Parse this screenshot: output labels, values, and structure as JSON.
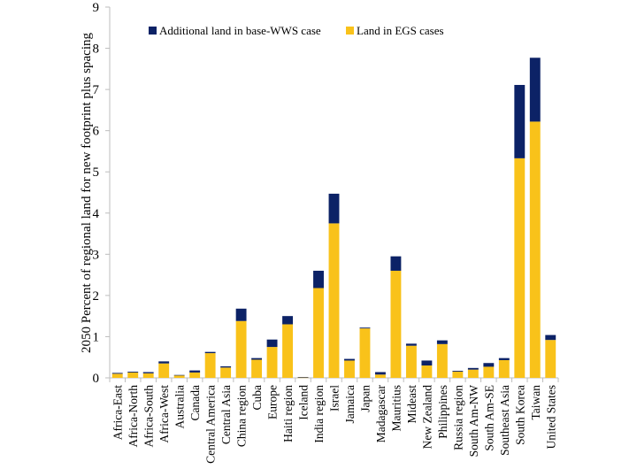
{
  "chart_data": {
    "type": "bar",
    "stacked": true,
    "title": "",
    "xlabel": "",
    "ylabel": "2050 Percent of regional land for new footprint plus spacing",
    "ylim": [
      0,
      9
    ],
    "yticks": [
      0,
      1,
      2,
      3,
      4,
      5,
      6,
      7,
      8,
      9
    ],
    "grid": false,
    "legend_position": "top",
    "categories": [
      "Africa-East",
      "Africa-North",
      "Africa-South",
      "Africa-West",
      "Australia",
      "Canada",
      "Central America",
      "Central Asia",
      "China region",
      "Cuba",
      "Europe",
      "Haiti region",
      "Iceland",
      "India region",
      "Israel",
      "Jamaica",
      "Japan",
      "Madagascar",
      "Mauritius",
      "Mideast",
      "New Zealand",
      "Philippines",
      "Russia region",
      "South Am-NW",
      "South Am-SE",
      "Southeast Asia",
      "South Korea",
      "Taiwan",
      "United States"
    ],
    "series": [
      {
        "name": "Land in EGS cases",
        "color": "#f9c21a",
        "values": [
          0.1,
          0.13,
          0.11,
          0.35,
          0.06,
          0.13,
          0.6,
          0.25,
          1.38,
          0.44,
          0.75,
          1.3,
          0.01,
          2.18,
          3.75,
          0.42,
          1.2,
          0.08,
          2.6,
          0.78,
          0.3,
          0.82,
          0.15,
          0.2,
          0.27,
          0.43,
          5.33,
          6.22,
          0.92
        ]
      },
      {
        "name": "Additional land in base-WWS case",
        "color": "#0c2266",
        "values": [
          0.02,
          0.02,
          0.03,
          0.05,
          0.01,
          0.05,
          0.03,
          0.03,
          0.3,
          0.04,
          0.18,
          0.2,
          0.01,
          0.42,
          0.72,
          0.04,
          0.02,
          0.06,
          0.35,
          0.05,
          0.12,
          0.09,
          0.02,
          0.04,
          0.09,
          0.05,
          1.78,
          1.55,
          0.12
        ]
      }
    ],
    "legend": [
      "Additional land in base-WWS case",
      "Land in EGS cases"
    ]
  }
}
